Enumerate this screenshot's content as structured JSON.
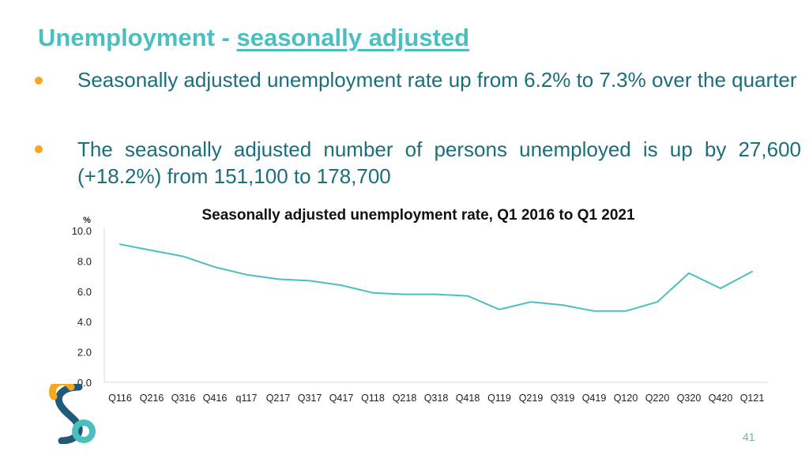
{
  "slide": {
    "title_main": "Unemployment  - ",
    "title_sub": "seasonally adjusted",
    "bullets": [
      "Seasonally adjusted unemployment rate up from 6.2% to 7.3% over the quarter",
      "The seasonally adjusted number of persons unemployed is up by 27,600 (+18.2%) from 151,100 to 178,700"
    ],
    "page_number": "41"
  },
  "colors": {
    "title": "#4bbfbf",
    "bullet_text": "#1a6f7a",
    "bullet_marker": "#f5a623",
    "line": "#4bbfbf",
    "axis": "#d9d9d9"
  },
  "chart_data": {
    "type": "line",
    "title": "Seasonally adjusted unemployment rate, Q1 2016 to Q1 2021",
    "ylabel": "%",
    "ylim": [
      0,
      10
    ],
    "yticks": [
      "0.0",
      "2.0",
      "4.0",
      "6.0",
      "8.0",
      "10.0"
    ],
    "grid": false,
    "categories": [
      "Q116",
      "Q216",
      "Q316",
      "Q416",
      "q117",
      "Q217",
      "Q317",
      "Q417",
      "Q118",
      "Q218",
      "Q318",
      "Q418",
      "Q119",
      "Q219",
      "Q319",
      "Q419",
      "Q120",
      "Q220",
      "Q320",
      "Q420",
      "Q121"
    ],
    "series": [
      {
        "values": [
          9.1,
          8.7,
          8.3,
          7.6,
          7.1,
          6.8,
          6.7,
          6.4,
          5.9,
          5.8,
          5.8,
          5.7,
          4.8,
          5.3,
          5.1,
          4.7,
          4.7,
          5.3,
          7.2,
          6.2,
          7.3
        ]
      }
    ]
  }
}
